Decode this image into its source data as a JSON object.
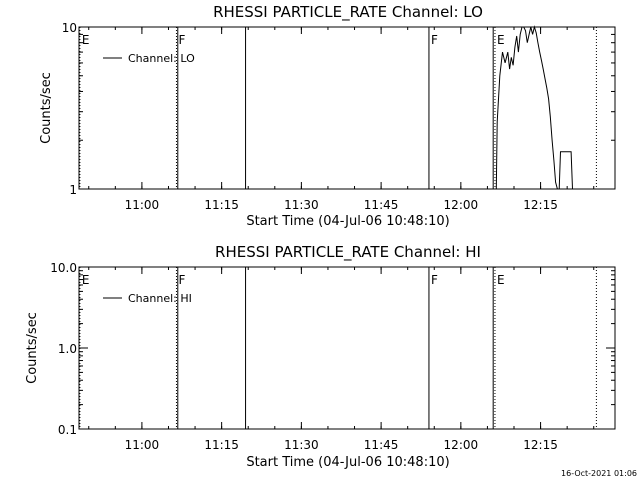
{
  "chart_data": [
    {
      "type": "line",
      "title": "RHESSI  PARTICLE_RATE  Channel: LO",
      "ylabel": "Counts/sec",
      "xlabel": "Start Time (04-Jul-06 10:48:10)",
      "yscale": "log",
      "ylim": [
        1,
        10
      ],
      "yticks": [
        {
          "value": 1,
          "label": "1"
        },
        {
          "value": 10,
          "label": "10"
        }
      ],
      "xlim": [
        "10:48:10",
        "12:29:00"
      ],
      "xticks": [
        "11:00",
        "11:15",
        "11:30",
        "11:45",
        "12:00",
        "12:15"
      ],
      "legend": {
        "entry": "Channel: LO",
        "placement": "top-left"
      },
      "series": [
        {
          "name": "Channel: LO",
          "x": [
            "12:06:40",
            "12:06:50",
            "12:07:20",
            "12:07:50",
            "12:08:20",
            "12:08:50",
            "12:09:10",
            "12:09:30",
            "12:09:50",
            "12:10:10",
            "12:10:30",
            "12:10:50",
            "12:11:10",
            "12:11:30",
            "12:11:50",
            "12:12:10",
            "12:12:30",
            "12:12:50",
            "12:13:10",
            "12:13:30",
            "12:13:50",
            "12:14:10",
            "12:14:30",
            "12:14:50",
            "12:15:10",
            "12:15:30",
            "12:15:50",
            "12:16:10",
            "12:16:30",
            "12:16:50",
            "12:17:10",
            "12:17:30",
            "12:17:50",
            "12:18:10",
            "12:18:30",
            "12:18:45",
            "12:19:00",
            "12:19:20",
            "12:19:40",
            "12:20:00",
            "12:20:20",
            "12:20:45",
            "12:21:00"
          ],
          "y": [
            1,
            2.6,
            5.0,
            7.0,
            6.0,
            7.0,
            5.5,
            6.5,
            5.8,
            7.5,
            8.8,
            7.0,
            9.0,
            10,
            10,
            9.5,
            8.0,
            9.0,
            10,
            9.0,
            10,
            9.2,
            8.0,
            7.0,
            6.2,
            5.5,
            4.8,
            4.2,
            3.6,
            2.8,
            2.0,
            1.5,
            1.1,
            1,
            1,
            1.7,
            1.7,
            1.7,
            1.7,
            1.7,
            1.7,
            1.7,
            1
          ]
        }
      ],
      "markers": [
        {
          "label": "E",
          "time": "10:48:20",
          "style": "dotted"
        },
        {
          "label": "F",
          "time": "11:06:30",
          "style": "dotted"
        },
        {
          "label": "",
          "time": "11:06:45",
          "style": "solid"
        },
        {
          "label": "",
          "time": "11:19:30",
          "style": "solid"
        },
        {
          "label": "F",
          "time": "11:54:00",
          "style": "solid"
        },
        {
          "label": "",
          "time": "12:06:05",
          "style": "solid"
        },
        {
          "label": "E",
          "time": "12:06:25",
          "style": "dotted"
        },
        {
          "label": "",
          "time": "12:25:30",
          "style": "dotted"
        }
      ]
    },
    {
      "type": "line",
      "title": "RHESSI  PARTICLE_RATE  Channel: HI",
      "ylabel": "Counts/sec",
      "xlabel": "Start Time (04-Jul-06 10:48:10)",
      "yscale": "log",
      "ylim": [
        0.1,
        10
      ],
      "yticks": [
        {
          "value": 0.1,
          "label": "0.1"
        },
        {
          "value": 1,
          "label": "1.0"
        },
        {
          "value": 10,
          "label": "10.0"
        }
      ],
      "xlim": [
        "10:48:10",
        "12:29:00"
      ],
      "xticks": [
        "11:00",
        "11:15",
        "11:30",
        "11:45",
        "12:00",
        "12:15"
      ],
      "legend": {
        "entry": "Channel: HI",
        "placement": "top-left"
      },
      "series": [
        {
          "name": "Channel: HI",
          "x": [],
          "y": []
        }
      ],
      "markers": [
        {
          "label": "E",
          "time": "10:48:20",
          "style": "dotted"
        },
        {
          "label": "F",
          "time": "11:06:30",
          "style": "dotted"
        },
        {
          "label": "",
          "time": "11:06:45",
          "style": "solid"
        },
        {
          "label": "",
          "time": "11:19:30",
          "style": "solid"
        },
        {
          "label": "F",
          "time": "11:54:00",
          "style": "solid"
        },
        {
          "label": "",
          "time": "12:06:05",
          "style": "solid"
        },
        {
          "label": "E",
          "time": "12:06:25",
          "style": "dotted"
        },
        {
          "label": "",
          "time": "12:25:30",
          "style": "dotted"
        }
      ]
    }
  ],
  "footer": {
    "stamp": "16-Oct-2021 01:06"
  }
}
